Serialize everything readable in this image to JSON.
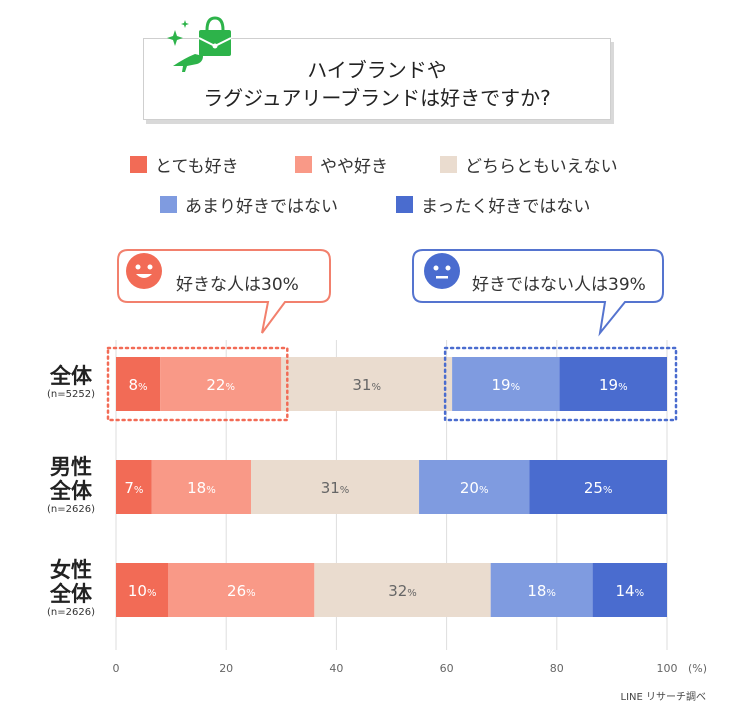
{
  "title": {
    "line1": "ハイブランドや",
    "line2": "ラグジュアリーブランドは好きですか?"
  },
  "icon_name": "shopping-bag-and-high-heel-icon",
  "legend": [
    {
      "label": "とても好き",
      "color": "#f26b56"
    },
    {
      "label": "やや好き",
      "color": "#f99987"
    },
    {
      "label": "どちらともいえない",
      "color": "#eadccf"
    },
    {
      "label": "あまり好きではない",
      "color": "#7f9be0"
    },
    {
      "label": "まったく好きではない",
      "color": "#4a6ccf"
    }
  ],
  "callouts": {
    "like": "好きな人は30%",
    "dislike": "好きではない人は39%"
  },
  "rows": [
    {
      "label1": "全体",
      "label2": "",
      "n": "(n=5252)"
    },
    {
      "label1": "男性",
      "label2": "全体",
      "n": "(n=2626)"
    },
    {
      "label1": "女性",
      "label2": "全体",
      "n": "(n=2626)"
    }
  ],
  "axis_unit": "(%)",
  "source": "LINE リサーチ調べ",
  "chart_data": {
    "type": "bar",
    "orientation": "horizontal",
    "stacked": true,
    "categories": [
      "全体",
      "男性全体",
      "女性全体"
    ],
    "series": [
      {
        "name": "とても好き",
        "values": [
          8,
          7,
          10
        ]
      },
      {
        "name": "やや好き",
        "values": [
          22,
          18,
          26
        ]
      },
      {
        "name": "どちらともいえない",
        "values": [
          31,
          31,
          32
        ]
      },
      {
        "name": "あまり好きではない",
        "values": [
          19,
          20,
          18
        ]
      },
      {
        "name": "まったく好きではない",
        "values": [
          19,
          25,
          14
        ]
      }
    ],
    "value_positions": [
      [
        0,
        8,
        30,
        61,
        80.5,
        100
      ],
      [
        0,
        6.5,
        24.5,
        55,
        75,
        100
      ],
      [
        0,
        9.5,
        36,
        68,
        86.5,
        100
      ]
    ],
    "xlim": [
      0,
      100
    ],
    "xticks": [
      0,
      20,
      40,
      60,
      80,
      100
    ],
    "grid": true,
    "legend_position": "top"
  }
}
